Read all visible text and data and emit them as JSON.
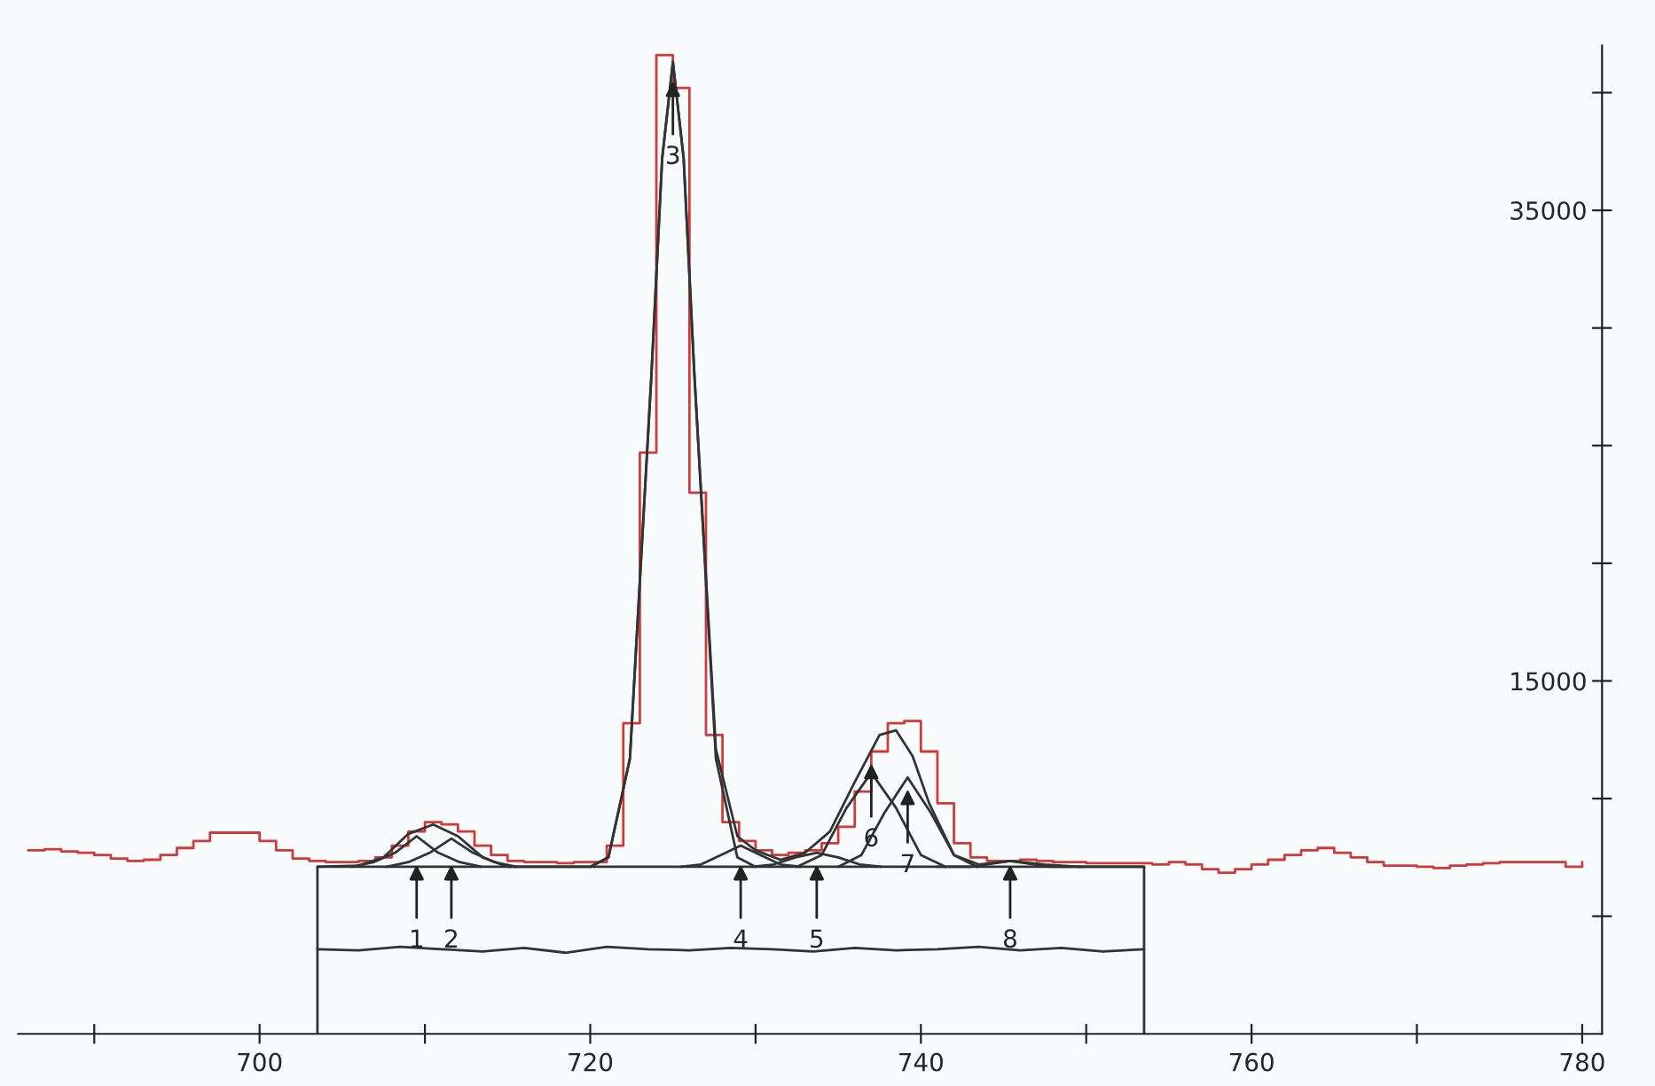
{
  "chart_data": {
    "type": "line",
    "xlim": [
      685.4,
      781.2
    ],
    "ylim": [
      0,
      42000
    ],
    "xticks": [
      {
        "value": 690,
        "label": null
      },
      700,
      {
        "value": 710,
        "label": null
      },
      720,
      {
        "value": 730,
        "label": null
      },
      740,
      {
        "value": 750,
        "label": null
      },
      760,
      {
        "value": 770,
        "label": null
      },
      780
    ],
    "yticks": [
      {
        "value": 5000,
        "label": null
      },
      {
        "value": 10000,
        "label": null
      },
      15000,
      {
        "value": 20000,
        "label": null
      },
      {
        "value": 25000,
        "label": null
      },
      {
        "value": 30000,
        "label": null
      },
      35000,
      {
        "value": 40000,
        "label": null
      }
    ],
    "grid": false,
    "legend": false,
    "marker": "none",
    "line_style": "solid",
    "series": [
      {
        "type": "step",
        "color": "#d03a3a",
        "x": [
          686,
          687,
          688,
          689,
          690,
          691,
          692,
          693,
          694,
          695,
          696,
          697,
          698,
          699,
          700,
          701,
          702,
          703,
          704,
          705,
          706,
          707,
          708,
          709,
          710,
          711,
          712,
          713,
          714,
          715,
          716,
          717,
          718,
          719,
          720,
          721,
          722,
          723,
          724,
          725,
          726,
          727,
          728,
          729,
          730,
          731,
          732,
          733,
          734,
          735,
          736,
          737,
          738,
          739,
          740,
          741,
          742,
          743,
          744,
          745,
          746,
          747,
          748,
          749,
          750,
          751,
          752,
          753,
          754,
          755,
          756,
          757,
          758,
          759,
          760,
          761,
          762,
          763,
          764,
          765,
          766,
          767,
          768,
          769,
          770,
          771,
          772,
          773,
          774,
          775,
          776,
          777,
          778,
          779,
          780
        ],
        "values": [
          7800,
          7850,
          7750,
          7700,
          7600,
          7450,
          7350,
          7400,
          7600,
          7900,
          8200,
          8550,
          8550,
          8550,
          8200,
          7800,
          7450,
          7350,
          7300,
          7300,
          7350,
          7500,
          8000,
          8600,
          9000,
          8900,
          8600,
          8000,
          7600,
          7350,
          7300,
          7300,
          7250,
          7300,
          7300,
          8000,
          13200,
          24700,
          41600,
          40200,
          23000,
          12700,
          9000,
          8200,
          7800,
          7600,
          7700,
          7800,
          8100,
          8800,
          10300,
          12000,
          13200,
          13300,
          12000,
          9800,
          8100,
          7500,
          7350,
          7350,
          7400,
          7350,
          7300,
          7300,
          7250,
          7250,
          7250,
          7250,
          7200,
          7300,
          7200,
          7000,
          6850,
          7000,
          7200,
          7400,
          7600,
          7800,
          7900,
          7700,
          7500,
          7300,
          7150,
          7150,
          7100,
          7050,
          7150,
          7200,
          7250,
          7300,
          7300,
          7300,
          7300,
          7100,
          7300
        ]
      },
      {
        "color": "#333333",
        "x": [
          703.5,
          703.5,
          753.5,
          753.5
        ],
        "values": [
          0,
          7100,
          7100,
          0
        ]
      },
      {
        "color": "#333333",
        "x": [
          703.5,
          706,
          707.5,
          709,
          710.5,
          712,
          713.5,
          715,
          717,
          720,
          721.1,
          722.4,
          723.7,
          724.35,
          725,
          725.65,
          726.3,
          727.6,
          728.9,
          730,
          731.5,
          733,
          734.5,
          736,
          737.5,
          738.5,
          739.5,
          740.5,
          742,
          743.5,
          745.4,
          747.5,
          749.5,
          753.5
        ],
        "values": [
          7100,
          7150,
          7500,
          8500,
          8900,
          8400,
          7500,
          7100,
          7100,
          7100,
          7500,
          11700,
          28000,
          37200,
          41300,
          37200,
          28000,
          12100,
          8400,
          7800,
          7400,
          7700,
          8600,
          10700,
          12700,
          12900,
          11800,
          9800,
          7600,
          7200,
          7350,
          7200,
          7100,
          7100
        ]
      },
      {
        "color": "#333333",
        "x": [
          705.6,
          706.9,
          708.2,
          709.5,
          710.8,
          712.1,
          713.4
        ],
        "values": [
          7100,
          7300,
          7700,
          8400,
          7700,
          7300,
          7100
        ]
      },
      {
        "color": "#333333",
        "x": [
          707.7,
          709,
          710.3,
          711.6,
          712.9,
          714.2,
          715.5
        ],
        "values": [
          7100,
          7300,
          7700,
          8300,
          7700,
          7300,
          7100
        ]
      },
      {
        "color": "#333333",
        "x": [
          720,
          721.1,
          722.4,
          723.7,
          724.35,
          725,
          725.65,
          726.3,
          727.6,
          728.9,
          730
        ],
        "values": [
          7100,
          7500,
          11700,
          28000,
          37200,
          41300,
          37200,
          28000,
          11700,
          7500,
          7100
        ]
      },
      {
        "color": "#333333",
        "x": [
          725.5,
          726.7,
          727.9,
          729.1,
          730.3,
          731.5,
          732.7
        ],
        "values": [
          7100,
          7200,
          7600,
          8000,
          7600,
          7200,
          7100
        ]
      },
      {
        "color": "#333333",
        "x": [
          729.8,
          731.1,
          732.4,
          733.7,
          735,
          736.3,
          737.6
        ],
        "values": [
          7100,
          7200,
          7500,
          7700,
          7500,
          7200,
          7100
        ]
      },
      {
        "color": "#333333",
        "x": [
          732.5,
          734,
          735.5,
          737,
          738.5,
          740,
          741.5
        ],
        "values": [
          7100,
          7600,
          9600,
          11100,
          9600,
          7600,
          7100
        ]
      },
      {
        "color": "#333333",
        "x": [
          735,
          736.4,
          737.8,
          739.2,
          740.6,
          742,
          743.4
        ],
        "values": [
          7100,
          7600,
          9400,
          10900,
          9400,
          7600,
          7100
        ]
      },
      {
        "color": "#333333",
        "x": [
          741,
          743,
          745.4,
          747.8,
          749.8
        ],
        "values": [
          7100,
          7100,
          7350,
          7100,
          7100
        ]
      },
      {
        "color": "#333333",
        "x": [
          703.5,
          706,
          708.5,
          711,
          713.5,
          716,
          718.5,
          721,
          723.5,
          726,
          728.5,
          731,
          733.5,
          736,
          738.5,
          741,
          743.5,
          746,
          748.5,
          751,
          753.5
        ],
        "values": [
          3600,
          3550,
          3700,
          3600,
          3500,
          3650,
          3450,
          3700,
          3600,
          3550,
          3650,
          3600,
          3500,
          3650,
          3550,
          3600,
          3700,
          3550,
          3650,
          3500,
          3600
        ]
      }
    ],
    "annotations": [
      {
        "text": "1",
        "x": 709.5,
        "y": 7400
      },
      {
        "text": "2",
        "x": 711.6,
        "y": 7400
      },
      {
        "text": "3",
        "x": 725.0,
        "y": 40700
      },
      {
        "text": "4",
        "x": 729.1,
        "y": 7400
      },
      {
        "text": "5",
        "x": 733.7,
        "y": 7400
      },
      {
        "text": "6",
        "x": 737.0,
        "y": 11700
      },
      {
        "text": "7",
        "x": 739.2,
        "y": 10600
      },
      {
        "text": "8",
        "x": 745.4,
        "y": 7400
      }
    ]
  }
}
